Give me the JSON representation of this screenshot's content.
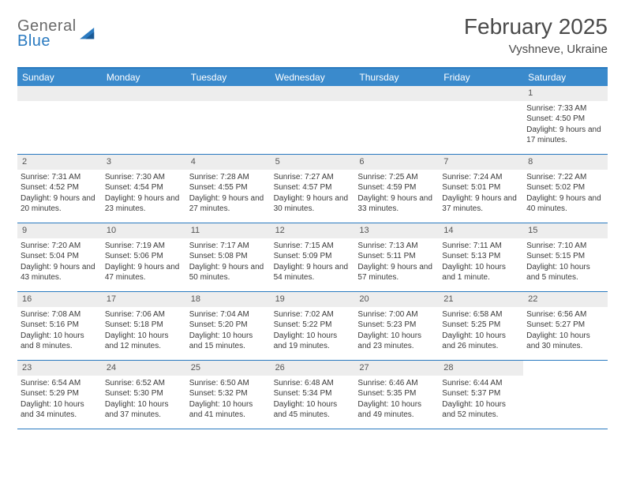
{
  "logo": {
    "top": "General",
    "bottom": "Blue"
  },
  "title": "February 2025",
  "location": "Vyshneve, Ukraine",
  "colors": {
    "header_bar": "#3a8acc",
    "accent_line": "#2a7ac0",
    "daynum_bg": "#ededed",
    "text": "#3a3a3a",
    "title_text": "#4a4a4a"
  },
  "weekdays": [
    "Sunday",
    "Monday",
    "Tuesday",
    "Wednesday",
    "Thursday",
    "Friday",
    "Saturday"
  ],
  "weeks": [
    [
      {
        "n": "",
        "empty": true
      },
      {
        "n": "",
        "empty": true
      },
      {
        "n": "",
        "empty": true
      },
      {
        "n": "",
        "empty": true
      },
      {
        "n": "",
        "empty": true
      },
      {
        "n": "",
        "empty": true
      },
      {
        "n": "1",
        "sunrise": "Sunrise: 7:33 AM",
        "sunset": "Sunset: 4:50 PM",
        "daylight": "Daylight: 9 hours and 17 minutes."
      }
    ],
    [
      {
        "n": "2",
        "sunrise": "Sunrise: 7:31 AM",
        "sunset": "Sunset: 4:52 PM",
        "daylight": "Daylight: 9 hours and 20 minutes."
      },
      {
        "n": "3",
        "sunrise": "Sunrise: 7:30 AM",
        "sunset": "Sunset: 4:54 PM",
        "daylight": "Daylight: 9 hours and 23 minutes."
      },
      {
        "n": "4",
        "sunrise": "Sunrise: 7:28 AM",
        "sunset": "Sunset: 4:55 PM",
        "daylight": "Daylight: 9 hours and 27 minutes."
      },
      {
        "n": "5",
        "sunrise": "Sunrise: 7:27 AM",
        "sunset": "Sunset: 4:57 PM",
        "daylight": "Daylight: 9 hours and 30 minutes."
      },
      {
        "n": "6",
        "sunrise": "Sunrise: 7:25 AM",
        "sunset": "Sunset: 4:59 PM",
        "daylight": "Daylight: 9 hours and 33 minutes."
      },
      {
        "n": "7",
        "sunrise": "Sunrise: 7:24 AM",
        "sunset": "Sunset: 5:01 PM",
        "daylight": "Daylight: 9 hours and 37 minutes."
      },
      {
        "n": "8",
        "sunrise": "Sunrise: 7:22 AM",
        "sunset": "Sunset: 5:02 PM",
        "daylight": "Daylight: 9 hours and 40 minutes."
      }
    ],
    [
      {
        "n": "9",
        "sunrise": "Sunrise: 7:20 AM",
        "sunset": "Sunset: 5:04 PM",
        "daylight": "Daylight: 9 hours and 43 minutes."
      },
      {
        "n": "10",
        "sunrise": "Sunrise: 7:19 AM",
        "sunset": "Sunset: 5:06 PM",
        "daylight": "Daylight: 9 hours and 47 minutes."
      },
      {
        "n": "11",
        "sunrise": "Sunrise: 7:17 AM",
        "sunset": "Sunset: 5:08 PM",
        "daylight": "Daylight: 9 hours and 50 minutes."
      },
      {
        "n": "12",
        "sunrise": "Sunrise: 7:15 AM",
        "sunset": "Sunset: 5:09 PM",
        "daylight": "Daylight: 9 hours and 54 minutes."
      },
      {
        "n": "13",
        "sunrise": "Sunrise: 7:13 AM",
        "sunset": "Sunset: 5:11 PM",
        "daylight": "Daylight: 9 hours and 57 minutes."
      },
      {
        "n": "14",
        "sunrise": "Sunrise: 7:11 AM",
        "sunset": "Sunset: 5:13 PM",
        "daylight": "Daylight: 10 hours and 1 minute."
      },
      {
        "n": "15",
        "sunrise": "Sunrise: 7:10 AM",
        "sunset": "Sunset: 5:15 PM",
        "daylight": "Daylight: 10 hours and 5 minutes."
      }
    ],
    [
      {
        "n": "16",
        "sunrise": "Sunrise: 7:08 AM",
        "sunset": "Sunset: 5:16 PM",
        "daylight": "Daylight: 10 hours and 8 minutes."
      },
      {
        "n": "17",
        "sunrise": "Sunrise: 7:06 AM",
        "sunset": "Sunset: 5:18 PM",
        "daylight": "Daylight: 10 hours and 12 minutes."
      },
      {
        "n": "18",
        "sunrise": "Sunrise: 7:04 AM",
        "sunset": "Sunset: 5:20 PM",
        "daylight": "Daylight: 10 hours and 15 minutes."
      },
      {
        "n": "19",
        "sunrise": "Sunrise: 7:02 AM",
        "sunset": "Sunset: 5:22 PM",
        "daylight": "Daylight: 10 hours and 19 minutes."
      },
      {
        "n": "20",
        "sunrise": "Sunrise: 7:00 AM",
        "sunset": "Sunset: 5:23 PM",
        "daylight": "Daylight: 10 hours and 23 minutes."
      },
      {
        "n": "21",
        "sunrise": "Sunrise: 6:58 AM",
        "sunset": "Sunset: 5:25 PM",
        "daylight": "Daylight: 10 hours and 26 minutes."
      },
      {
        "n": "22",
        "sunrise": "Sunrise: 6:56 AM",
        "sunset": "Sunset: 5:27 PM",
        "daylight": "Daylight: 10 hours and 30 minutes."
      }
    ],
    [
      {
        "n": "23",
        "sunrise": "Sunrise: 6:54 AM",
        "sunset": "Sunset: 5:29 PM",
        "daylight": "Daylight: 10 hours and 34 minutes."
      },
      {
        "n": "24",
        "sunrise": "Sunrise: 6:52 AM",
        "sunset": "Sunset: 5:30 PM",
        "daylight": "Daylight: 10 hours and 37 minutes."
      },
      {
        "n": "25",
        "sunrise": "Sunrise: 6:50 AM",
        "sunset": "Sunset: 5:32 PM",
        "daylight": "Daylight: 10 hours and 41 minutes."
      },
      {
        "n": "26",
        "sunrise": "Sunrise: 6:48 AM",
        "sunset": "Sunset: 5:34 PM",
        "daylight": "Daylight: 10 hours and 45 minutes."
      },
      {
        "n": "27",
        "sunrise": "Sunrise: 6:46 AM",
        "sunset": "Sunset: 5:35 PM",
        "daylight": "Daylight: 10 hours and 49 minutes."
      },
      {
        "n": "28",
        "sunrise": "Sunrise: 6:44 AM",
        "sunset": "Sunset: 5:37 PM",
        "daylight": "Daylight: 10 hours and 52 minutes."
      },
      {
        "n": "",
        "empty": true,
        "noBg": true
      }
    ]
  ]
}
